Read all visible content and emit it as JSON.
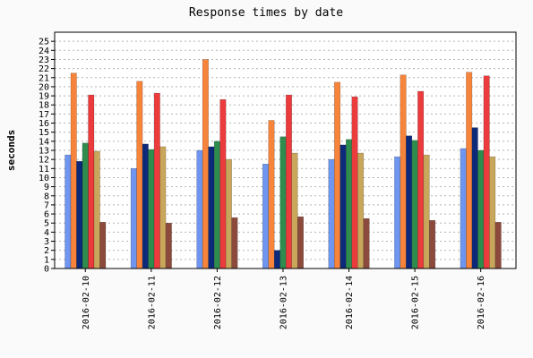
{
  "chart_data": {
    "type": "bar",
    "title": "Response times by date",
    "xlabel": "",
    "ylabel": "seconds",
    "ylim": [
      0,
      26
    ],
    "yticks": [
      0,
      1,
      2,
      3,
      4,
      5,
      6,
      7,
      8,
      9,
      10,
      11,
      12,
      13,
      14,
      15,
      16,
      17,
      18,
      19,
      20,
      21,
      22,
      23,
      24,
      25
    ],
    "grid": true,
    "legend": "none",
    "categories": [
      "2016-02-10",
      "2016-02-11",
      "2016-02-12",
      "2016-02-13",
      "2016-02-14",
      "2016-02-15",
      "2016-02-16"
    ],
    "series": [
      {
        "color": "#6e95ef",
        "values": [
          12.5,
          11.0,
          13.0,
          11.5,
          12.0,
          12.3,
          13.2
        ]
      },
      {
        "color": "#f7843b",
        "values": [
          21.5,
          20.6,
          23.0,
          16.3,
          20.5,
          21.3,
          21.6
        ]
      },
      {
        "color": "#0d2a7a",
        "values": [
          11.8,
          13.7,
          13.4,
          2.0,
          13.6,
          14.6,
          15.5
        ]
      },
      {
        "color": "#2f8c4f",
        "values": [
          13.8,
          13.1,
          14.0,
          14.5,
          14.2,
          14.1,
          13.0
        ]
      },
      {
        "color": "#ec3b3d",
        "values": [
          19.1,
          19.3,
          18.6,
          19.1,
          18.9,
          19.5,
          21.2
        ]
      },
      {
        "color": "#c9a75a",
        "values": [
          12.9,
          13.4,
          12.0,
          12.7,
          12.7,
          12.5,
          12.3
        ]
      },
      {
        "color": "#8c4a3c",
        "values": [
          5.1,
          5.0,
          5.6,
          5.7,
          5.5,
          5.3,
          5.1
        ]
      }
    ]
  }
}
